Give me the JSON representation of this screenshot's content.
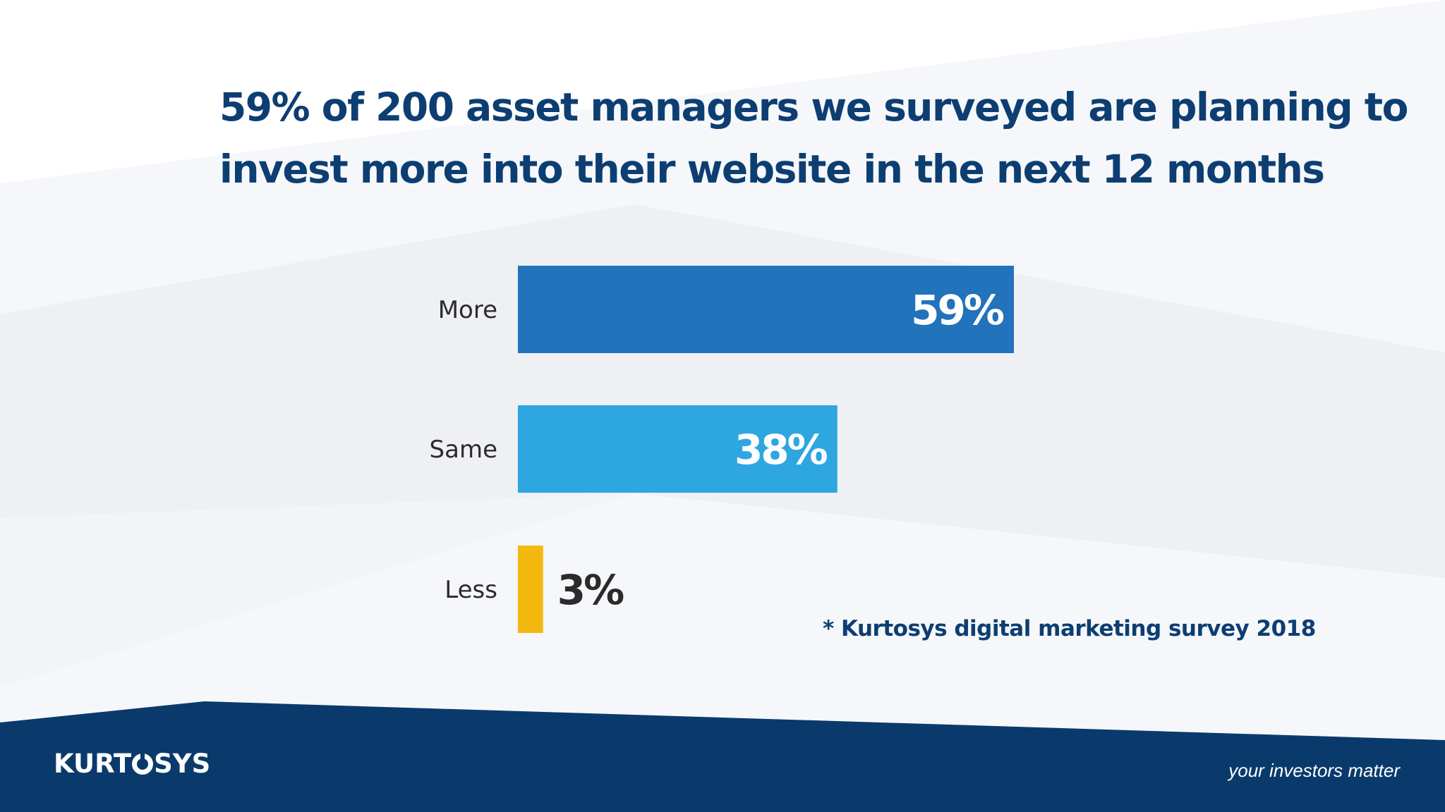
{
  "slide": {
    "title_lines": [
      "59% of 200 asset managers we surveyed are planning to",
      "invest more into their website in the next 12 months"
    ],
    "source_note": "* Kurtosys digital marketing survey 2018",
    "footer": {
      "logo_prefix": "KURT",
      "logo_suffix": "SYS",
      "tagline": "your investors matter"
    }
  },
  "colors": {
    "title": "#0d3e72",
    "footer_band": "#0a3a6c"
  },
  "chart_data": {
    "type": "bar",
    "orientation": "horizontal",
    "categories": [
      "More",
      "Same",
      "Less"
    ],
    "values": [
      59,
      38,
      3
    ],
    "value_labels": [
      "59%",
      "38%",
      "3%"
    ],
    "bar_colors": [
      "#2272bc",
      "#2ea6e0",
      "#f4b90f"
    ],
    "value_label_colors": [
      "#ffffff",
      "#ffffff",
      "#2b2b2b"
    ],
    "xlim": [
      0,
      100
    ],
    "grid": false,
    "legend": "none"
  }
}
